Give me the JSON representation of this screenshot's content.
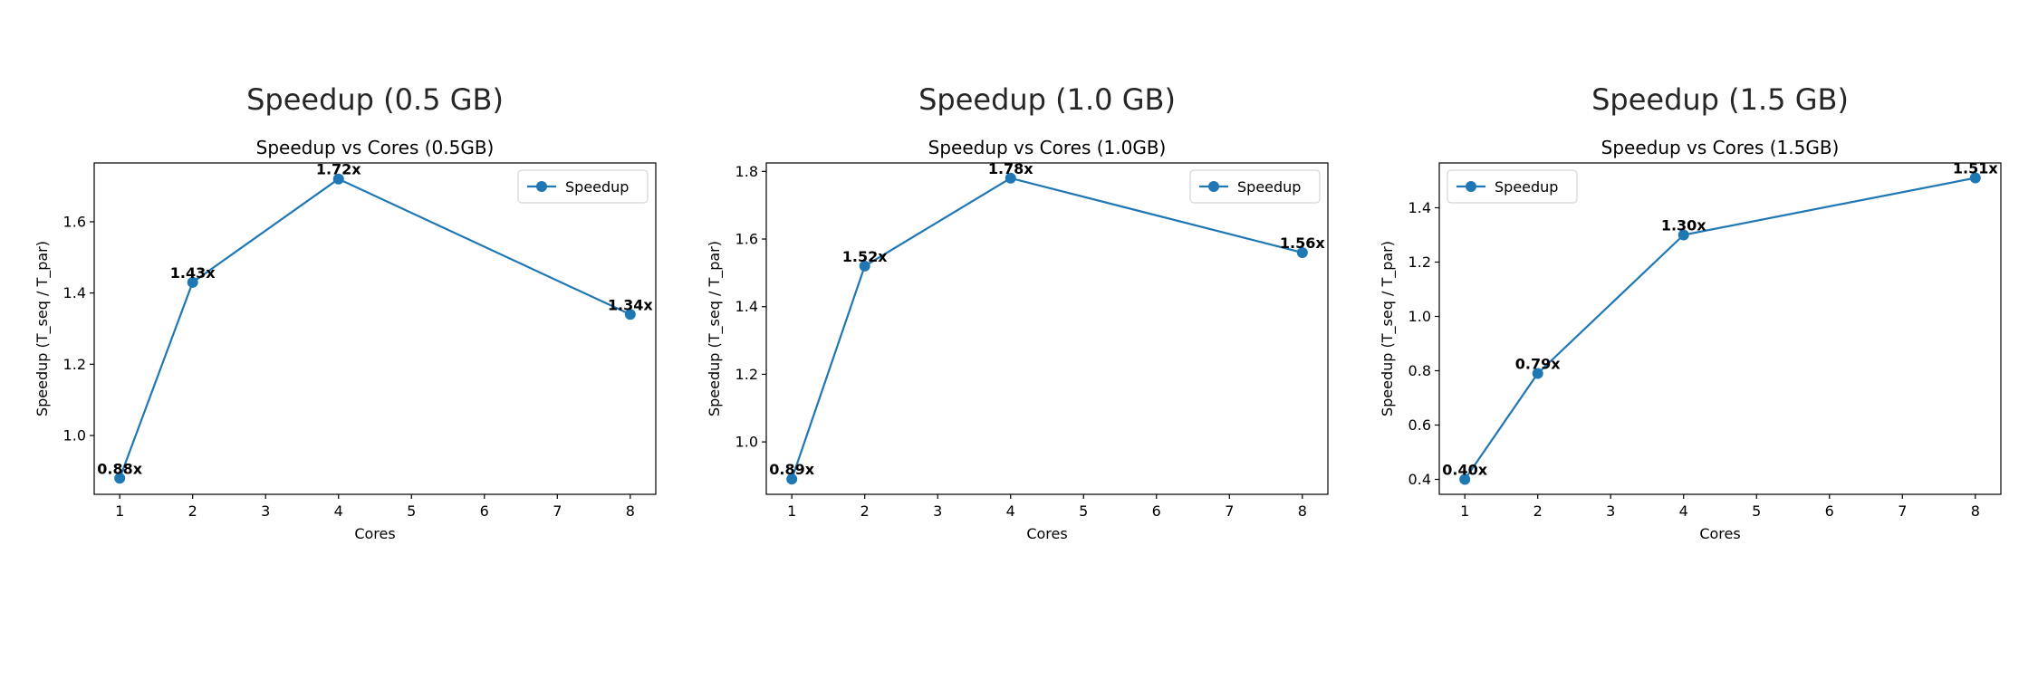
{
  "colors": {
    "series": "#1f77b4",
    "axis": "#000000",
    "suptitle": "#262626",
    "background": "#ffffff"
  },
  "chart_data": [
    {
      "type": "line",
      "header": "Speedup (0.5 GB)",
      "title": "Speedup vs Cores (0.5GB)",
      "xlabel": "Cores",
      "ylabel": "Speedup (T_seq / T_par)",
      "xlim": [
        0.65,
        8.35
      ],
      "ylim": [
        0.835,
        1.765
      ],
      "xticks": [
        1,
        2,
        3,
        4,
        5,
        6,
        7,
        8
      ],
      "yticks": [
        1.0,
        1.2,
        1.4,
        1.6
      ],
      "ytick_labels": [
        "1.0",
        "1.2",
        "1.4",
        "1.6"
      ],
      "grid": false,
      "legend_position": "upper right",
      "series": [
        {
          "name": "Speedup",
          "marker": "circle",
          "x": [
            1,
            2,
            4,
            8
          ],
          "y": [
            0.88,
            1.43,
            1.72,
            1.34
          ]
        }
      ],
      "point_labels": [
        "0.88x",
        "1.43x",
        "1.72x",
        "1.34x"
      ]
    },
    {
      "type": "line",
      "header": "Speedup (1.0 GB)",
      "title": "Speedup vs Cores (1.0GB)",
      "xlabel": "Cores",
      "ylabel": "Speedup (T_seq / T_par)",
      "xlim": [
        0.65,
        8.35
      ],
      "ylim": [
        0.845,
        1.825
      ],
      "xticks": [
        1,
        2,
        3,
        4,
        5,
        6,
        7,
        8
      ],
      "yticks": [
        1.0,
        1.2,
        1.4,
        1.6,
        1.8
      ],
      "ytick_labels": [
        "1.0",
        "1.2",
        "1.4",
        "1.6",
        "1.8"
      ],
      "grid": false,
      "legend_position": "upper right",
      "series": [
        {
          "name": "Speedup",
          "marker": "circle",
          "x": [
            1,
            2,
            4,
            8
          ],
          "y": [
            0.89,
            1.52,
            1.78,
            1.56
          ]
        }
      ],
      "point_labels": [
        "0.89x",
        "1.52x",
        "1.78x",
        "1.56x"
      ]
    },
    {
      "type": "line",
      "header": "Speedup (1.5 GB)",
      "title": "Speedup vs Cores (1.5GB)",
      "xlabel": "Cores",
      "ylabel": "Speedup (T_seq / T_par)",
      "xlim": [
        0.65,
        8.35
      ],
      "ylim": [
        0.345,
        1.565
      ],
      "xticks": [
        1,
        2,
        3,
        4,
        5,
        6,
        7,
        8
      ],
      "yticks": [
        0.4,
        0.6,
        0.8,
        1.0,
        1.2,
        1.4
      ],
      "ytick_labels": [
        "0.4",
        "0.6",
        "0.8",
        "1.0",
        "1.2",
        "1.4"
      ],
      "grid": false,
      "legend_position": "upper left",
      "series": [
        {
          "name": "Speedup",
          "marker": "circle",
          "x": [
            1,
            2,
            4,
            8
          ],
          "y": [
            0.4,
            0.79,
            1.3,
            1.51
          ]
        }
      ],
      "point_labels": [
        "0.40x",
        "0.79x",
        "1.30x",
        "1.51x"
      ]
    }
  ]
}
